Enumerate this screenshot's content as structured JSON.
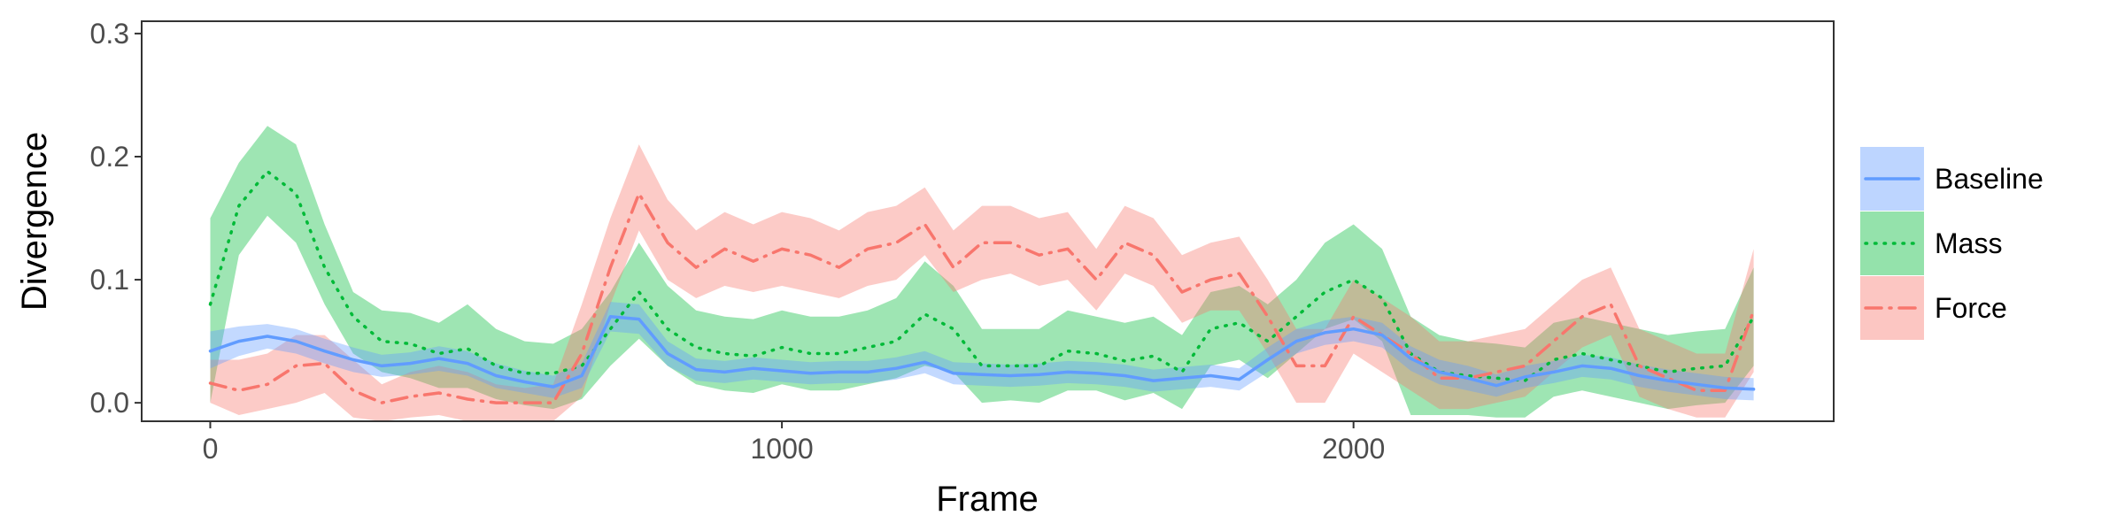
{
  "chart_data": {
    "type": "line",
    "title": "",
    "xlabel": "Frame",
    "ylabel": "Divergence",
    "xlim": [
      -120,
      2840
    ],
    "ylim": [
      -0.015,
      0.31
    ],
    "x_ticks": [
      0,
      1000,
      2000
    ],
    "x_tick_labels": [
      "0",
      "1000",
      "2000"
    ],
    "y_ticks": [
      0.0,
      0.1,
      0.2,
      0.3
    ],
    "y_tick_labels": [
      "0.0",
      "0.1",
      "0.2",
      "0.3"
    ],
    "grid": false,
    "legend_position": "right",
    "x": [
      0,
      50,
      100,
      150,
      200,
      250,
      300,
      350,
      400,
      450,
      500,
      550,
      600,
      650,
      700,
      750,
      800,
      850,
      900,
      950,
      1000,
      1050,
      1100,
      1150,
      1200,
      1250,
      1300,
      1350,
      1400,
      1450,
      1500,
      1550,
      1600,
      1650,
      1700,
      1750,
      1800,
      1850,
      1900,
      1950,
      2000,
      2050,
      2100,
      2150,
      2200,
      2250,
      2300,
      2350,
      2400,
      2450,
      2500,
      2550,
      2600,
      2650,
      2700
    ],
    "series": [
      {
        "name": "Baseline",
        "color": "#619CFF",
        "line_style": "solid",
        "values": [
          0.042,
          0.05,
          0.054,
          0.05,
          0.042,
          0.035,
          0.03,
          0.032,
          0.036,
          0.032,
          0.022,
          0.017,
          0.013,
          0.022,
          0.07,
          0.068,
          0.04,
          0.027,
          0.025,
          0.028,
          0.026,
          0.024,
          0.025,
          0.025,
          0.028,
          0.033,
          0.024,
          0.023,
          0.022,
          0.023,
          0.025,
          0.024,
          0.022,
          0.018,
          0.02,
          0.022,
          0.019,
          0.035,
          0.05,
          0.057,
          0.06,
          0.055,
          0.036,
          0.025,
          0.02,
          0.014,
          0.021,
          0.025,
          0.03,
          0.028,
          0.022,
          0.018,
          0.015,
          0.012,
          0.011
        ],
        "lower": [
          0.028,
          0.038,
          0.044,
          0.04,
          0.032,
          0.025,
          0.021,
          0.023,
          0.026,
          0.022,
          0.012,
          0.008,
          0.004,
          0.012,
          0.058,
          0.056,
          0.03,
          0.018,
          0.016,
          0.019,
          0.017,
          0.015,
          0.016,
          0.016,
          0.019,
          0.024,
          0.015,
          0.014,
          0.013,
          0.014,
          0.016,
          0.015,
          0.013,
          0.009,
          0.011,
          0.013,
          0.01,
          0.025,
          0.04,
          0.047,
          0.05,
          0.045,
          0.026,
          0.015,
          0.01,
          0.005,
          0.012,
          0.016,
          0.021,
          0.019,
          0.013,
          0.009,
          0.006,
          0.003,
          0.002
        ],
        "upper": [
          0.058,
          0.062,
          0.064,
          0.06,
          0.052,
          0.045,
          0.039,
          0.041,
          0.046,
          0.042,
          0.032,
          0.026,
          0.022,
          0.032,
          0.082,
          0.08,
          0.05,
          0.036,
          0.034,
          0.037,
          0.035,
          0.033,
          0.034,
          0.034,
          0.037,
          0.042,
          0.033,
          0.032,
          0.031,
          0.032,
          0.034,
          0.033,
          0.031,
          0.027,
          0.029,
          0.031,
          0.028,
          0.045,
          0.06,
          0.067,
          0.07,
          0.065,
          0.046,
          0.035,
          0.03,
          0.023,
          0.03,
          0.034,
          0.039,
          0.037,
          0.031,
          0.027,
          0.024,
          0.021,
          0.02
        ]
      },
      {
        "name": "Mass",
        "color": "#00BA38",
        "line_style": "dotted",
        "values": [
          0.08,
          0.16,
          0.188,
          0.17,
          0.11,
          0.07,
          0.05,
          0.048,
          0.04,
          0.044,
          0.03,
          0.024,
          0.024,
          0.03,
          0.06,
          0.09,
          0.06,
          0.045,
          0.04,
          0.038,
          0.045,
          0.04,
          0.04,
          0.045,
          0.05,
          0.072,
          0.06,
          0.03,
          0.03,
          0.03,
          0.042,
          0.04,
          0.034,
          0.038,
          0.025,
          0.06,
          0.065,
          0.05,
          0.07,
          0.09,
          0.1,
          0.085,
          0.04,
          0.025,
          0.022,
          0.02,
          0.018,
          0.035,
          0.04,
          0.035,
          0.03,
          0.025,
          0.028,
          0.03,
          0.07
        ],
        "lower": [
          0.0,
          0.12,
          0.152,
          0.13,
          0.08,
          0.04,
          0.025,
          0.02,
          0.012,
          0.012,
          0.003,
          -0.002,
          -0.005,
          0.003,
          0.03,
          0.052,
          0.03,
          0.015,
          0.01,
          0.008,
          0.015,
          0.01,
          0.01,
          0.015,
          0.02,
          0.03,
          0.025,
          0.0,
          0.002,
          0.0,
          0.01,
          0.01,
          0.002,
          0.008,
          -0.005,
          0.03,
          0.035,
          0.02,
          0.04,
          0.06,
          0.068,
          0.05,
          -0.01,
          -0.01,
          -0.01,
          -0.012,
          -0.012,
          0.005,
          0.01,
          0.005,
          0.0,
          -0.005,
          -0.002,
          0.0,
          0.03
        ],
        "upper": [
          0.15,
          0.195,
          0.225,
          0.21,
          0.145,
          0.09,
          0.075,
          0.073,
          0.065,
          0.08,
          0.06,
          0.05,
          0.048,
          0.06,
          0.09,
          0.13,
          0.095,
          0.075,
          0.07,
          0.068,
          0.075,
          0.07,
          0.07,
          0.075,
          0.085,
          0.115,
          0.095,
          0.06,
          0.06,
          0.06,
          0.075,
          0.07,
          0.065,
          0.07,
          0.055,
          0.09,
          0.095,
          0.08,
          0.1,
          0.13,
          0.145,
          0.125,
          0.07,
          0.055,
          0.05,
          0.048,
          0.045,
          0.065,
          0.07,
          0.065,
          0.06,
          0.055,
          0.058,
          0.06,
          0.11
        ]
      },
      {
        "name": "Force",
        "color": "#F8766D",
        "line_style": "dotdash",
        "values": [
          0.016,
          0.01,
          0.015,
          0.03,
          0.032,
          0.01,
          0.0,
          0.005,
          0.008,
          0.003,
          0.0,
          0.0,
          0.0,
          0.04,
          0.11,
          0.17,
          0.13,
          0.11,
          0.125,
          0.115,
          0.125,
          0.12,
          0.11,
          0.125,
          0.13,
          0.145,
          0.11,
          0.13,
          0.13,
          0.12,
          0.125,
          0.1,
          0.13,
          0.12,
          0.09,
          0.1,
          0.105,
          0.07,
          0.03,
          0.03,
          0.07,
          0.055,
          0.04,
          0.02,
          0.02,
          0.025,
          0.03,
          0.05,
          0.07,
          0.08,
          0.03,
          0.02,
          0.01,
          0.01,
          0.075
        ],
        "lower": [
          0.0,
          -0.01,
          -0.005,
          0.0,
          0.008,
          -0.012,
          -0.015,
          -0.012,
          -0.01,
          -0.015,
          -0.015,
          -0.015,
          -0.015,
          0.005,
          0.08,
          0.14,
          0.1,
          0.085,
          0.095,
          0.09,
          0.095,
          0.09,
          0.085,
          0.095,
          0.1,
          0.12,
          0.09,
          0.1,
          0.105,
          0.095,
          0.1,
          0.075,
          0.105,
          0.095,
          0.065,
          0.075,
          0.075,
          0.04,
          0.0,
          0.0,
          0.04,
          0.025,
          0.01,
          -0.005,
          -0.005,
          0.0,
          0.005,
          0.025,
          0.045,
          0.055,
          0.005,
          -0.005,
          -0.012,
          -0.012,
          0.025
        ],
        "upper": [
          0.035,
          0.035,
          0.04,
          0.055,
          0.055,
          0.035,
          0.015,
          0.025,
          0.03,
          0.025,
          0.015,
          0.012,
          0.015,
          0.08,
          0.15,
          0.21,
          0.165,
          0.14,
          0.155,
          0.145,
          0.155,
          0.15,
          0.14,
          0.155,
          0.16,
          0.175,
          0.14,
          0.16,
          0.16,
          0.15,
          0.155,
          0.125,
          0.16,
          0.15,
          0.12,
          0.13,
          0.135,
          0.1,
          0.06,
          0.06,
          0.1,
          0.085,
          0.07,
          0.05,
          0.05,
          0.055,
          0.06,
          0.08,
          0.1,
          0.11,
          0.06,
          0.05,
          0.04,
          0.04,
          0.125
        ]
      }
    ]
  }
}
